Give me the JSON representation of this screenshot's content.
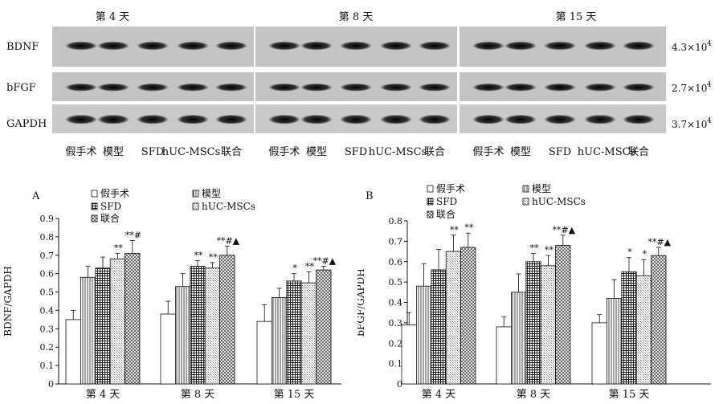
{
  "blot": {
    "group_labels": [
      "第 4 天",
      "第 8 天",
      "第 15 天"
    ],
    "row_labels": [
      "BDNF",
      "bFGF",
      "GAPDH"
    ],
    "size_labels": [
      "4.3×10",
      "2.7×10",
      "3.7×10"
    ],
    "size_exponent": "4",
    "lane_labels": [
      "假手术",
      "模型",
      "SFD",
      "hUC-MSCs",
      "联合",
      "假手术",
      "模型",
      "SFD",
      "hUC-MSCs",
      "联合",
      "假手术",
      "模型",
      "SFD",
      "hUC-MSCs",
      "联合"
    ],
    "band_intensity": {
      "BDNF": [
        [
          0.55,
          0.6,
          0.78,
          0.72,
          0.85
        ],
        [
          0.5,
          0.65,
          0.85,
          0.8,
          0.88
        ],
        [
          0.45,
          0.6,
          0.78,
          0.72,
          0.75
        ]
      ],
      "bFGF": [
        [
          0.6,
          0.68,
          0.82,
          0.8,
          0.9
        ],
        [
          0.65,
          0.72,
          0.8,
          0.72,
          0.9
        ],
        [
          0.45,
          0.6,
          0.8,
          0.72,
          0.92
        ]
      ],
      "GAPDH": [
        [
          0.9,
          0.9,
          0.9,
          0.9,
          0.9
        ],
        [
          0.92,
          0.9,
          0.92,
          0.9,
          0.9
        ],
        [
          0.92,
          0.9,
          0.92,
          0.9,
          0.92
        ]
      ]
    }
  },
  "chart_data": [
    {
      "type": "bar",
      "panel": "A",
      "ylabel": "BDNF/GAPDH",
      "ylim": [
        0,
        0.9
      ],
      "yticks": [
        "0",
        "0.1",
        "0.2",
        "0.3",
        "0.4",
        "0.5",
        "0.6",
        "0.7",
        "0.8",
        "0.9"
      ],
      "categories": [
        "第 4 天",
        "第 8 天",
        "第 15 天"
      ],
      "legend": [
        "假手术",
        "模型",
        "SFD",
        "hUC-MSCs",
        "联合"
      ],
      "series": [
        {
          "name": "假手术",
          "values": [
            0.35,
            0.38,
            0.34
          ],
          "errors": [
            0.05,
            0.07,
            0.09
          ],
          "labels": [
            "",
            "",
            ""
          ]
        },
        {
          "name": "模型",
          "values": [
            0.58,
            0.53,
            0.47
          ],
          "errors": [
            0.06,
            0.07,
            0.05
          ],
          "labels": [
            "",
            "",
            ""
          ]
        },
        {
          "name": "SFD",
          "values": [
            0.63,
            0.64,
            0.56
          ],
          "errors": [
            0.06,
            0.03,
            0.04
          ],
          "labels": [
            "",
            "**",
            "*"
          ]
        },
        {
          "name": "hUC-MSCs",
          "values": [
            0.68,
            0.63,
            0.55
          ],
          "errors": [
            0.03,
            0.03,
            0.06
          ],
          "labels": [
            "**",
            "**",
            "**"
          ]
        },
        {
          "name": "联合",
          "values": [
            0.71,
            0.7,
            0.62
          ],
          "errors": [
            0.07,
            0.05,
            0.02
          ],
          "labels": [
            "**#",
            "**#▲",
            "**#▲"
          ]
        }
      ]
    },
    {
      "type": "bar",
      "panel": "B",
      "ylabel": "bFGF/GAPDH",
      "ylim": [
        0,
        0.8
      ],
      "yticks": [
        "0",
        "0.1",
        "0.2",
        "0.3",
        "0.4",
        "0.5",
        "0.6",
        "0.7",
        "0.8"
      ],
      "categories": [
        "第 4 天",
        "第 8 天",
        "第 15 天"
      ],
      "legend": [
        "假手术",
        "模型",
        "SFD",
        "hUC-MSCs",
        "联合"
      ],
      "series": [
        {
          "name": "假手术",
          "values": [
            0.29,
            0.28,
            0.3
          ],
          "errors": [
            0.06,
            0.05,
            0.04
          ],
          "labels": [
            "",
            "",
            ""
          ]
        },
        {
          "name": "模型",
          "values": [
            0.48,
            0.45,
            0.42
          ],
          "errors": [
            0.11,
            0.09,
            0.09
          ],
          "labels": [
            "",
            "",
            ""
          ]
        },
        {
          "name": "SFD",
          "values": [
            0.56,
            0.6,
            0.55
          ],
          "errors": [
            0.1,
            0.04,
            0.07
          ],
          "labels": [
            "",
            "**",
            "*"
          ]
        },
        {
          "name": "hUC-MSCs",
          "values": [
            0.65,
            0.58,
            0.53
          ],
          "errors": [
            0.08,
            0.05,
            0.08
          ],
          "labels": [
            "**",
            "**",
            "*"
          ]
        },
        {
          "name": "联合",
          "values": [
            0.67,
            0.68,
            0.63
          ],
          "errors": [
            0.07,
            0.05,
            0.04
          ],
          "labels": [
            "**",
            "**#▲",
            "**#▲"
          ]
        }
      ]
    }
  ]
}
